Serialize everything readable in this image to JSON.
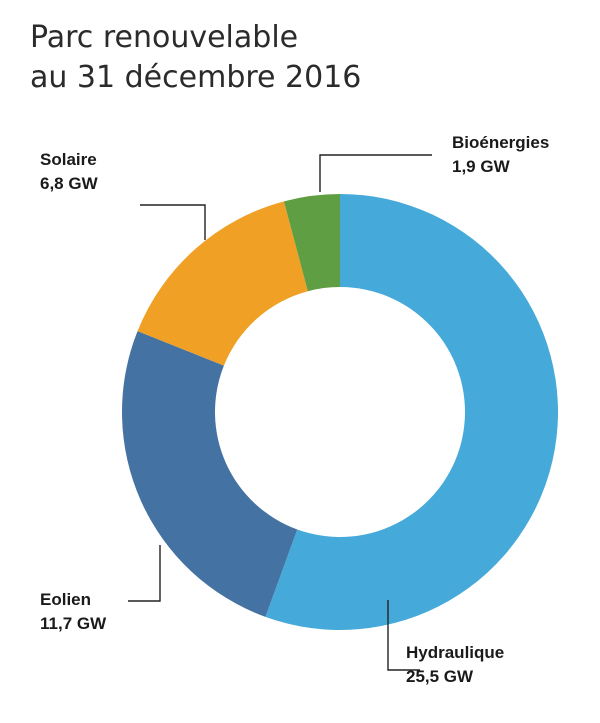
{
  "title_line1": "Parc renouvelable",
  "title_line2": "au 31 décembre 2016",
  "chart_data": {
    "type": "pie",
    "variant": "donut",
    "title": "Parc renouvelable au 31 décembre 2016",
    "unit": "GW",
    "categories": [
      "Hydraulique",
      "Eolien",
      "Solaire",
      "Bioénergies"
    ],
    "values": [
      25.5,
      11.7,
      6.8,
      1.9
    ],
    "value_labels": [
      "25,5 GW",
      "11,7 GW",
      "6,8 GW",
      "1,9 GW"
    ],
    "colors": [
      "#45A9D9",
      "#4472A3",
      "#F0A025",
      "#5F9E42"
    ],
    "start": "top",
    "direction": "clockwise"
  }
}
